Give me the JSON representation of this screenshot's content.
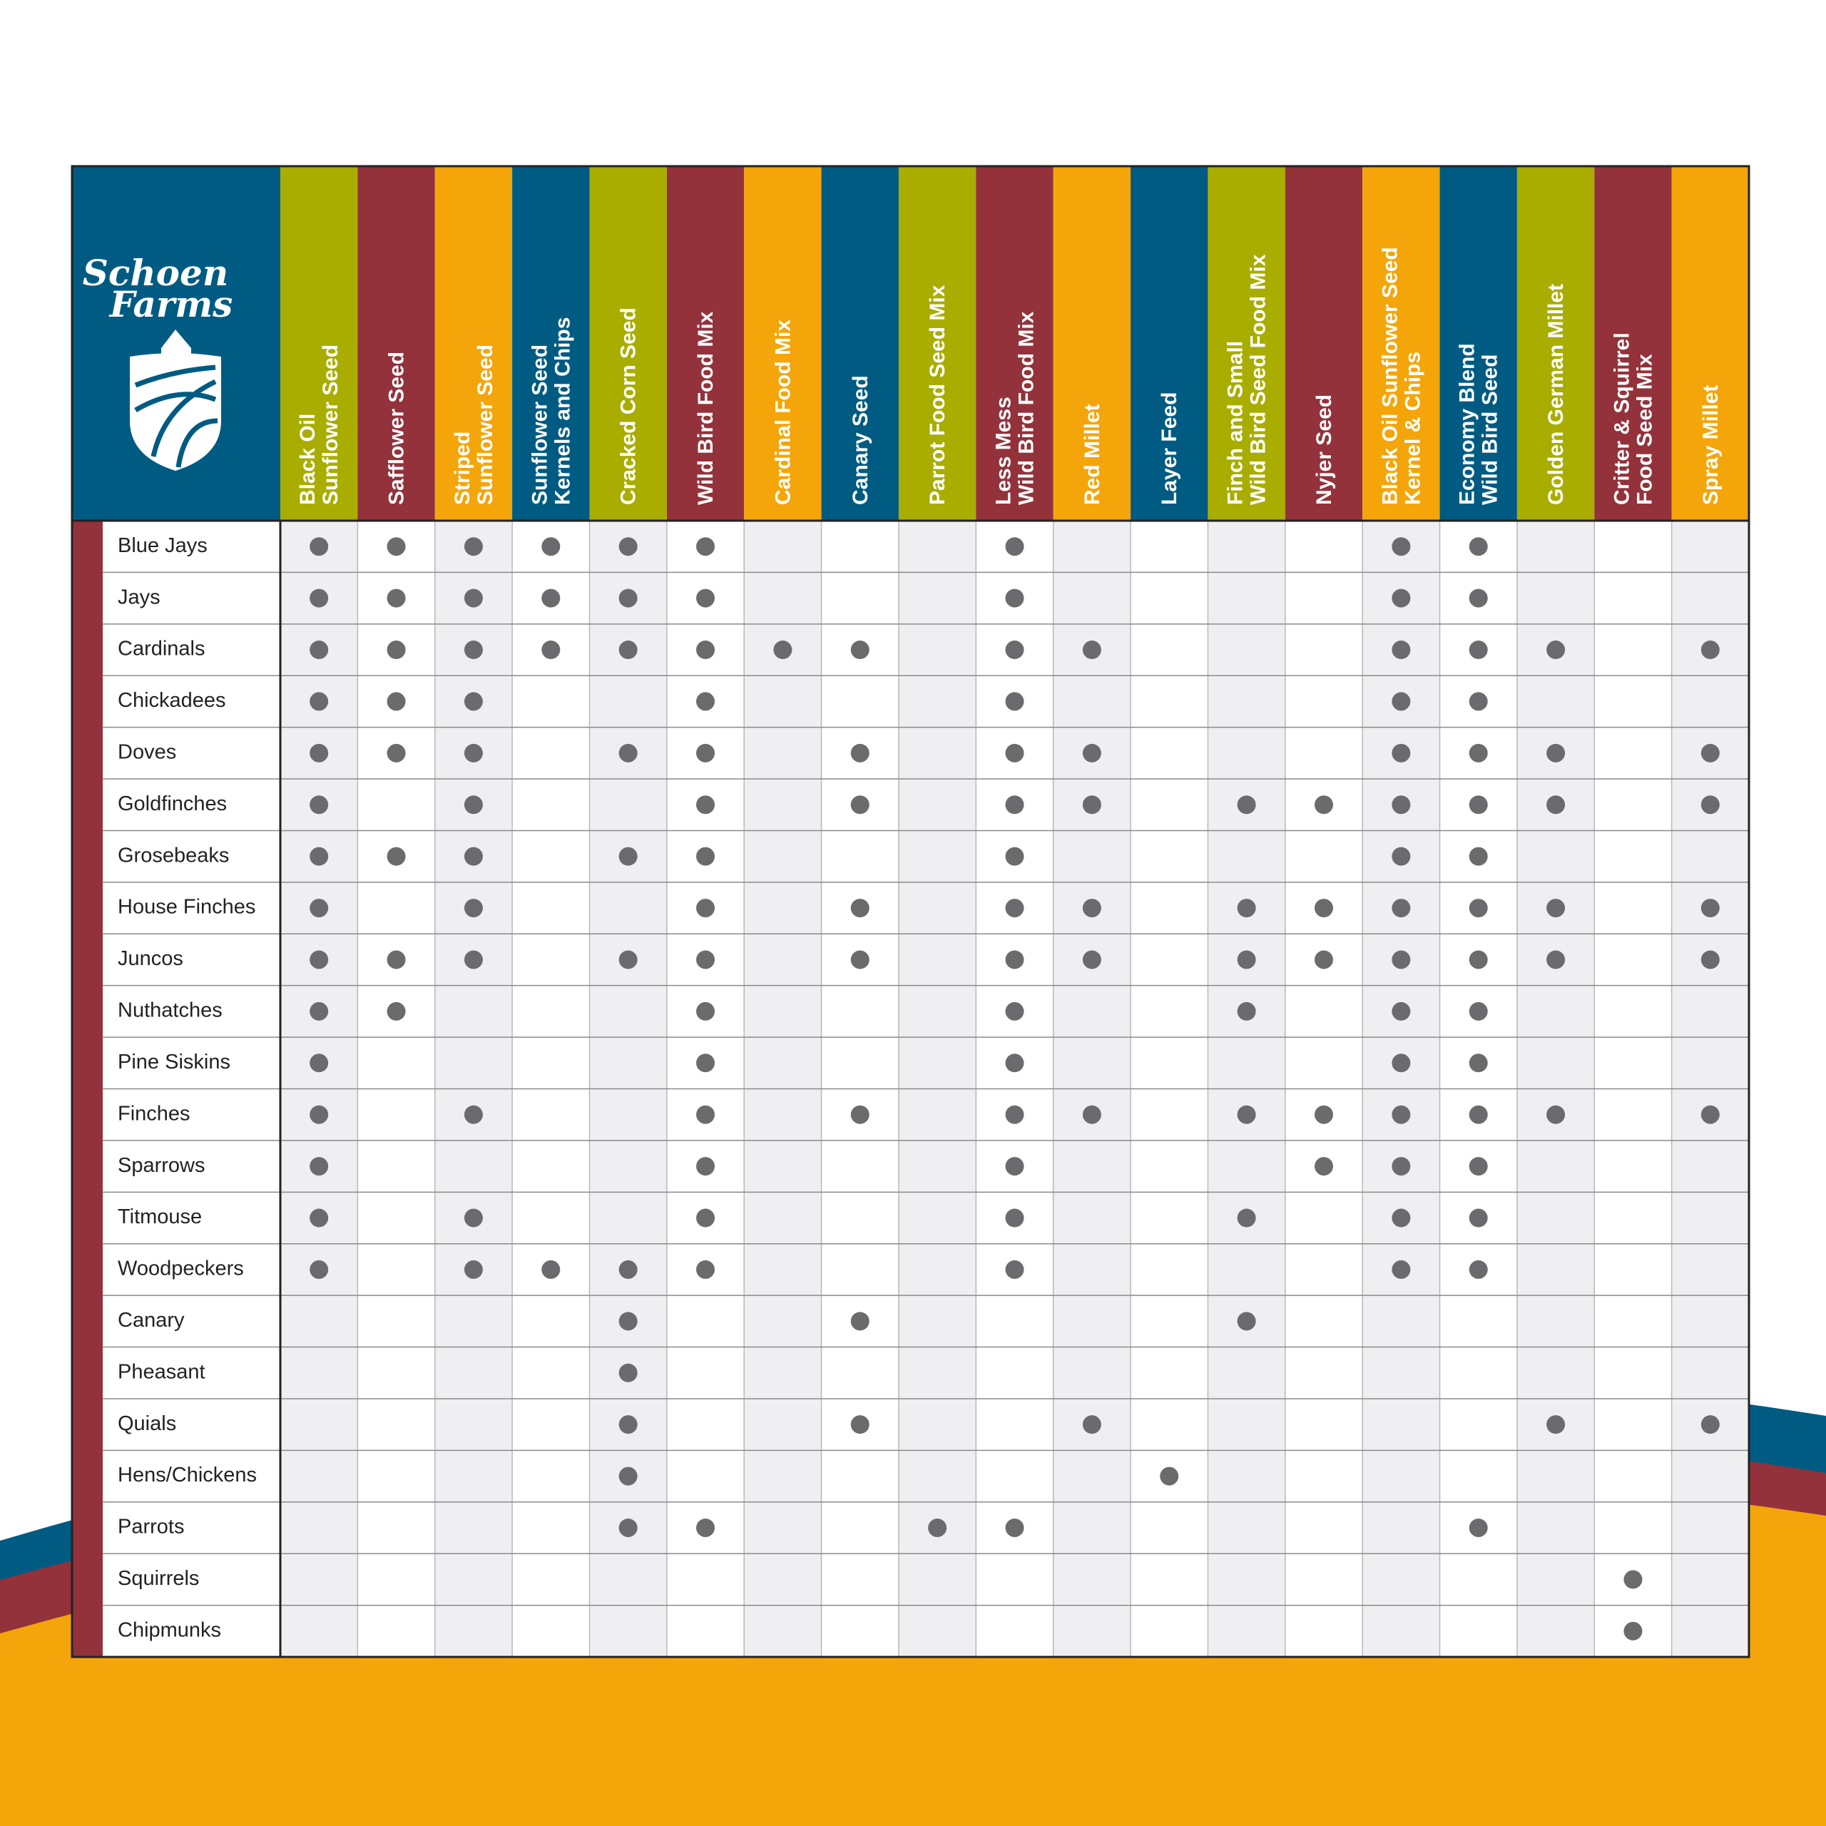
{
  "logo": {
    "lines": [
      "Schoen",
      "Farms"
    ]
  },
  "table": {
    "columns": [
      [
        "Black Oil",
        "Sunflower Seed"
      ],
      [
        "Safflower Seed"
      ],
      [
        "Striped",
        "Sunflower Seed"
      ],
      [
        "Sunflower Seed",
        "Kernels and Chips"
      ],
      [
        "Cracked Corn Seed"
      ],
      [
        "Wild Bird Food Mix"
      ],
      [
        "Cardinal Food Mix"
      ],
      [
        "Canary Seed"
      ],
      [
        "Parrot Food Seed Mix"
      ],
      [
        "Less Mess",
        "Wild Bird Food Mix"
      ],
      [
        "Red Millet"
      ],
      [
        "Layer Feed"
      ],
      [
        "Finch and Small",
        "Wild Bird Seed Food Mix"
      ],
      [
        "Nyjer Seed"
      ],
      [
        "Black Oil Sunflower Seed",
        "Kernel & Chips"
      ],
      [
        "Economy Blend",
        "Wild Bird Seed"
      ],
      [
        "Golden German Millet"
      ],
      [
        "Critter & Squirrel",
        "Food Seed Mix"
      ],
      [
        "Spray Millet"
      ]
    ],
    "rows": [
      {
        "bird": "Blue Jays",
        "marks": [
          1,
          1,
          1,
          1,
          1,
          1,
          0,
          0,
          0,
          1,
          0,
          0,
          0,
          0,
          1,
          1,
          0,
          0,
          0
        ]
      },
      {
        "bird": "Jays",
        "marks": [
          1,
          1,
          1,
          1,
          1,
          1,
          0,
          0,
          0,
          1,
          0,
          0,
          0,
          0,
          1,
          1,
          0,
          0,
          0
        ]
      },
      {
        "bird": "Cardinals",
        "marks": [
          1,
          1,
          1,
          1,
          1,
          1,
          1,
          1,
          0,
          1,
          1,
          0,
          0,
          0,
          1,
          1,
          1,
          0,
          1
        ]
      },
      {
        "bird": "Chickadees",
        "marks": [
          1,
          1,
          1,
          0,
          0,
          1,
          0,
          0,
          0,
          1,
          0,
          0,
          0,
          0,
          1,
          1,
          0,
          0,
          0
        ]
      },
      {
        "bird": "Doves",
        "marks": [
          1,
          1,
          1,
          0,
          1,
          1,
          0,
          1,
          0,
          1,
          1,
          0,
          0,
          0,
          1,
          1,
          1,
          0,
          1
        ]
      },
      {
        "bird": "Goldfinches",
        "marks": [
          1,
          0,
          1,
          0,
          0,
          1,
          0,
          1,
          0,
          1,
          1,
          0,
          1,
          1,
          1,
          1,
          1,
          0,
          1
        ]
      },
      {
        "bird": "Grosebeaks",
        "marks": [
          1,
          1,
          1,
          0,
          1,
          1,
          0,
          0,
          0,
          1,
          0,
          0,
          0,
          0,
          1,
          1,
          0,
          0,
          0
        ]
      },
      {
        "bird": "House Finches",
        "marks": [
          1,
          0,
          1,
          0,
          0,
          1,
          0,
          1,
          0,
          1,
          1,
          0,
          1,
          1,
          1,
          1,
          1,
          0,
          1
        ]
      },
      {
        "bird": "Juncos",
        "marks": [
          1,
          1,
          1,
          0,
          1,
          1,
          0,
          1,
          0,
          1,
          1,
          0,
          1,
          1,
          1,
          1,
          1,
          0,
          1
        ]
      },
      {
        "bird": "Nuthatches",
        "marks": [
          1,
          1,
          0,
          0,
          0,
          1,
          0,
          0,
          0,
          1,
          0,
          0,
          1,
          0,
          1,
          1,
          0,
          0,
          0
        ]
      },
      {
        "bird": "Pine Siskins",
        "marks": [
          1,
          0,
          0,
          0,
          0,
          1,
          0,
          0,
          0,
          1,
          0,
          0,
          0,
          0,
          1,
          1,
          0,
          0,
          0
        ]
      },
      {
        "bird": "Finches",
        "marks": [
          1,
          0,
          1,
          0,
          0,
          1,
          0,
          1,
          0,
          1,
          1,
          0,
          1,
          1,
          1,
          1,
          1,
          0,
          1
        ]
      },
      {
        "bird": "Sparrows",
        "marks": [
          1,
          0,
          0,
          0,
          0,
          1,
          0,
          0,
          0,
          1,
          0,
          0,
          0,
          1,
          1,
          1,
          0,
          0,
          0
        ]
      },
      {
        "bird": "Titmouse",
        "marks": [
          1,
          0,
          1,
          0,
          0,
          1,
          0,
          0,
          0,
          1,
          0,
          0,
          1,
          0,
          1,
          1,
          0,
          0,
          0
        ]
      },
      {
        "bird": "Woodpeckers",
        "marks": [
          1,
          0,
          1,
          1,
          1,
          1,
          0,
          0,
          0,
          1,
          0,
          0,
          0,
          0,
          1,
          1,
          0,
          0,
          0
        ]
      },
      {
        "bird": "Canary",
        "marks": [
          0,
          0,
          0,
          0,
          1,
          0,
          0,
          1,
          0,
          0,
          0,
          0,
          1,
          0,
          0,
          0,
          0,
          0,
          0
        ]
      },
      {
        "bird": "Pheasant",
        "marks": [
          0,
          0,
          0,
          0,
          1,
          0,
          0,
          0,
          0,
          0,
          0,
          0,
          0,
          0,
          0,
          0,
          0,
          0,
          0
        ]
      },
      {
        "bird": "Quials",
        "marks": [
          0,
          0,
          0,
          0,
          1,
          0,
          0,
          1,
          0,
          0,
          1,
          0,
          0,
          0,
          0,
          0,
          1,
          0,
          1
        ]
      },
      {
        "bird": "Hens/Chickens",
        "marks": [
          0,
          0,
          0,
          0,
          1,
          0,
          0,
          0,
          0,
          0,
          0,
          1,
          0,
          0,
          0,
          0,
          0,
          0,
          0
        ]
      },
      {
        "bird": "Parrots",
        "marks": [
          0,
          0,
          0,
          0,
          1,
          1,
          0,
          0,
          1,
          1,
          0,
          0,
          0,
          0,
          0,
          1,
          0,
          0,
          0
        ]
      },
      {
        "bird": "Squirrels",
        "marks": [
          0,
          0,
          0,
          0,
          0,
          0,
          0,
          0,
          0,
          0,
          0,
          0,
          0,
          0,
          0,
          0,
          0,
          1,
          0
        ]
      },
      {
        "bird": "Chipmunks",
        "marks": [
          0,
          0,
          0,
          0,
          0,
          0,
          0,
          0,
          0,
          0,
          0,
          0,
          0,
          0,
          0,
          0,
          0,
          1,
          0
        ]
      }
    ]
  }
}
